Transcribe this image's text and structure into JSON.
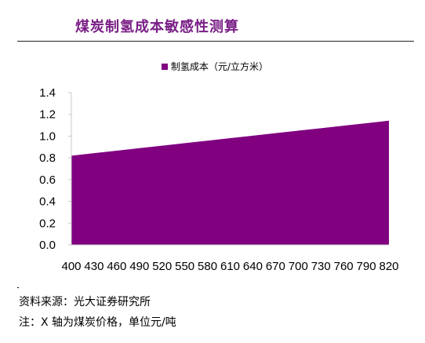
{
  "header": {
    "title": "煤炭制氢成本敏感性测算"
  },
  "footer": {
    "source": "资料来源：光大证券研究所",
    "note": "注：X 轴为煤炭价格，单位元/吨"
  },
  "colors": {
    "title": "#7a1f86",
    "area": "#800080",
    "axis": "#c8c8c8"
  },
  "chart_data": {
    "type": "area",
    "title": "",
    "xlabel": "",
    "ylabel": "",
    "x": [
      400,
      430,
      460,
      490,
      520,
      550,
      580,
      610,
      640,
      670,
      700,
      730,
      760,
      790,
      820
    ],
    "series": [
      {
        "name": "制氢成本（元/立方米）",
        "values": [
          0.82,
          0.843,
          0.866,
          0.889,
          0.912,
          0.935,
          0.958,
          0.981,
          1.004,
          1.027,
          1.05,
          1.073,
          1.096,
          1.119,
          1.142
        ]
      }
    ],
    "ylim": [
      0,
      1.4
    ],
    "yticks": [
      "0.0",
      "0.2",
      "0.4",
      "0.6",
      "0.8",
      "1.0",
      "1.2",
      "1.4"
    ],
    "xticks": [
      "400",
      "430",
      "460",
      "490",
      "520",
      "550",
      "580",
      "610",
      "640",
      "670",
      "700",
      "730",
      "760",
      "790",
      "820"
    ],
    "grid": false,
    "legend_position": "top-center"
  }
}
